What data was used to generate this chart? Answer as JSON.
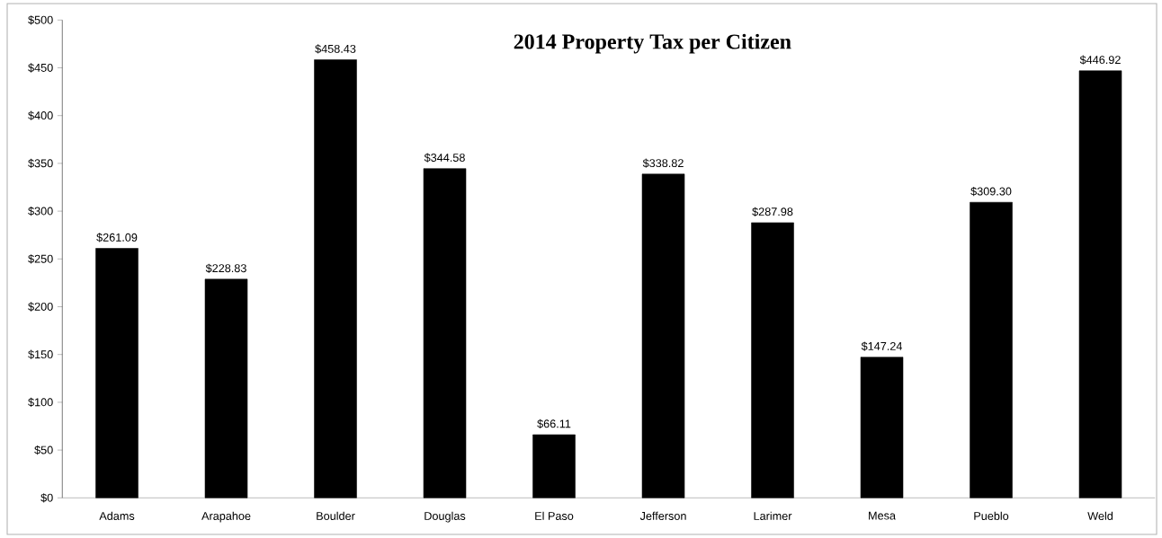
{
  "chart_data": {
    "type": "bar",
    "title": "2014 Property Tax per Citizen",
    "categories": [
      "Adams",
      "Arapahoe",
      "Boulder",
      "Douglas",
      "El Paso",
      "Jefferson",
      "Larimer",
      "Mesa",
      "Pueblo",
      "Weld"
    ],
    "values": [
      261.09,
      228.83,
      458.43,
      344.58,
      66.11,
      338.82,
      287.98,
      147.24,
      309.3,
      446.92
    ],
    "value_labels": [
      "$261.09",
      "$228.83",
      "$458.43",
      "$344.58",
      "$66.11",
      "$338.82",
      "$287.98",
      "$147.24",
      "$309.30",
      "$446.92"
    ],
    "color": "#000000",
    "ylim": [
      0,
      500
    ],
    "yticks": [
      {
        "value": 0,
        "label": "$0"
      },
      {
        "value": 50,
        "label": "$50"
      },
      {
        "value": 100,
        "label": "$100"
      },
      {
        "value": 150,
        "label": "$150"
      },
      {
        "value": 200,
        "label": "$200"
      },
      {
        "value": 250,
        "label": "$250"
      },
      {
        "value": 300,
        "label": "$300"
      },
      {
        "value": 350,
        "label": "$350"
      },
      {
        "value": 400,
        "label": "$400"
      },
      {
        "value": 450,
        "label": "$450"
      },
      {
        "value": 500,
        "label": "$500"
      }
    ],
    "grid": false
  }
}
